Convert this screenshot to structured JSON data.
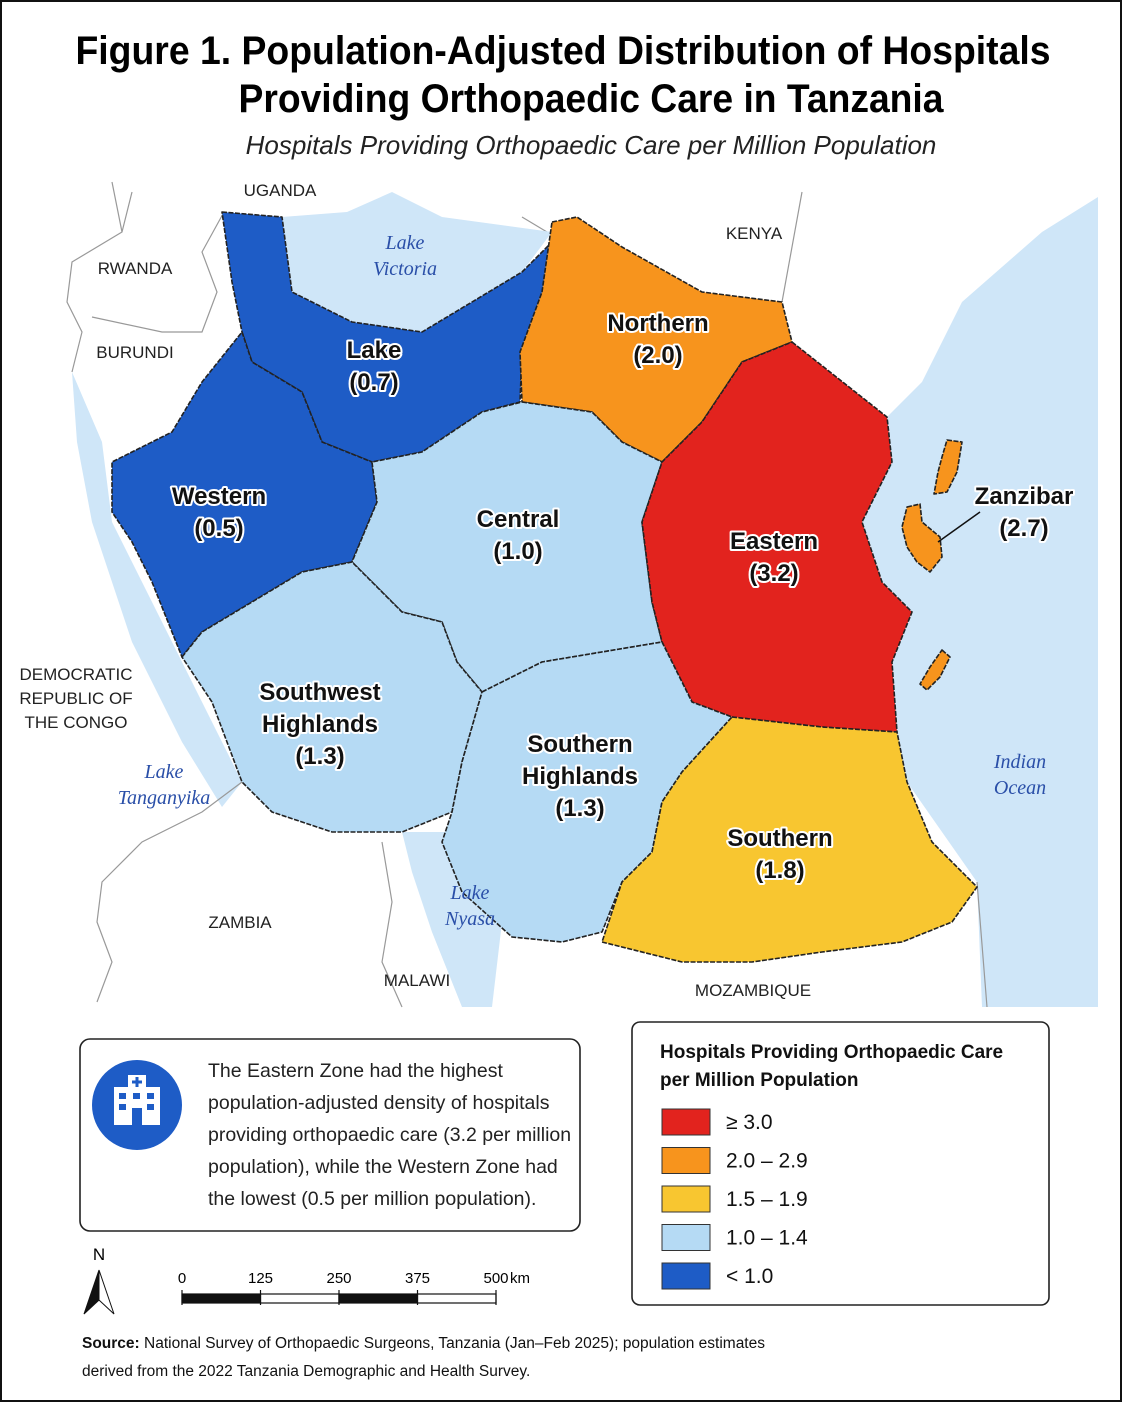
{
  "title": [
    "Figure 1. Population-Adjusted Distribution of Hospitals",
    "Providing Orthopaedic Care in Tanzania"
  ],
  "subtitle": "Hospitals Providing Orthopaedic Care per Million Population",
  "map": {
    "regions": [
      {
        "name": [
          "Lake"
        ],
        "value": 0.7,
        "value_label": "(0.7)",
        "color": "#1e5cc6"
      },
      {
        "name": [
          "Western"
        ],
        "value": 0.5,
        "value_label": "(0.5)",
        "color": "#1e5cc6"
      },
      {
        "name": [
          "Northern"
        ],
        "value": 2.0,
        "value_label": "(2.0)",
        "color": "#f7941d"
      },
      {
        "name": [
          "Central"
        ],
        "value": 1.0,
        "value_label": "(1.0)",
        "color": "#b5daf4"
      },
      {
        "name": [
          "Eastern"
        ],
        "value": 3.2,
        "value_label": "(3.2)",
        "color": "#e2231e"
      },
      {
        "name": [
          "Southwest",
          "Highlands"
        ],
        "value": 1.3,
        "value_label": "(1.3)",
        "color": "#b5daf4"
      },
      {
        "name": [
          "Southern",
          "Highlands"
        ],
        "value": 1.3,
        "value_label": "(1.3)",
        "color": "#b5daf4"
      },
      {
        "name": [
          "Southern"
        ],
        "value": 1.8,
        "value_label": "(1.8)",
        "color": "#f8c630"
      },
      {
        "name": [
          "Zanzibar"
        ],
        "value": 2.7,
        "value_label": "(2.7)",
        "color": "#f7941d"
      }
    ],
    "countries": [
      [
        "UGANDA"
      ],
      [
        "KENYA"
      ],
      [
        "RWANDA"
      ],
      [
        "BURUNDI"
      ],
      [
        "DEMOCRATIC",
        "REPUBLIC OF",
        "THE CONGO"
      ],
      [
        "ZAMBIA"
      ],
      [
        "MALAWI"
      ],
      [
        "MOZAMBIQUE"
      ]
    ],
    "water": [
      [
        "Lake",
        "Victoria"
      ],
      [
        "Lake",
        "Tanganyika"
      ],
      [
        "Lake",
        "Nyasa"
      ],
      [
        "Indian",
        "Ocean"
      ]
    ]
  },
  "callout": {
    "text": "The Eastern Zone had the highest population-adjusted density of hospitals providing orthopaedic care (3.2 per million population), while the Western Zone had the lowest (0.5 per million population)."
  },
  "legend": {
    "title": "Hospitals Providing Orthopaedic Care per Million Population",
    "items": [
      {
        "label": "≥ 3.0",
        "color": "#e2231e"
      },
      {
        "label": "2.0 – 2.9",
        "color": "#f7941d"
      },
      {
        "label": "1.5 – 1.9",
        "color": "#f8c630"
      },
      {
        "label": "1.0 – 1.4",
        "color": "#b5daf4"
      },
      {
        "label": "< 1.0",
        "color": "#1e5cc6"
      }
    ]
  },
  "scale_bar": {
    "ticks": [
      0,
      125,
      250,
      375,
      500
    ],
    "unit": "km"
  },
  "north": "N",
  "source": {
    "label": "Source:",
    "text": "National Survey of Orthopaedic Surgeons, Tanzania (Jan–Feb 2025); population estimates derived from the 2022 Tanzania Demographic and Health Survey."
  }
}
